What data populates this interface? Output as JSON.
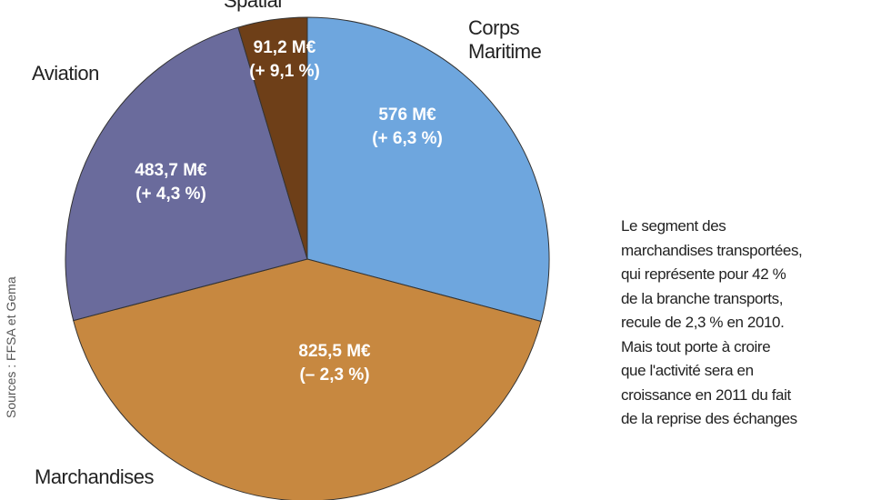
{
  "chart_data": {
    "type": "pie",
    "categories": [
      "Corps Maritime",
      "Marchandises",
      "Aviation",
      "Spatial"
    ],
    "values": [
      576,
      825.5,
      483.7,
      91.2
    ],
    "value_labels": [
      "576 M€",
      "825,5 M€",
      "483,7 M€",
      "91,2 M€"
    ],
    "changes": [
      6.3,
      -2.3,
      4.3,
      9.1
    ],
    "change_labels": [
      "(+ 6,3 %)",
      "(– 2,3 %)",
      "(+ 4,3 %)",
      "(+ 9,1 %)"
    ],
    "colors": [
      "#6ea6de",
      "#c78840",
      "#6a6b9c",
      "#6e3f18"
    ],
    "source": "Sources : FFSA et Gema",
    "note": [
      "Le segment des",
      "marchandises transportées,",
      "qui représente pour 42 %",
      "de la branche transports,",
      "recule de 2,3 % en 2010.",
      "Mais tout porte à croire",
      "que l'activité sera en",
      "croissance en 2011 du fait",
      "de la reprise des échanges"
    ]
  }
}
